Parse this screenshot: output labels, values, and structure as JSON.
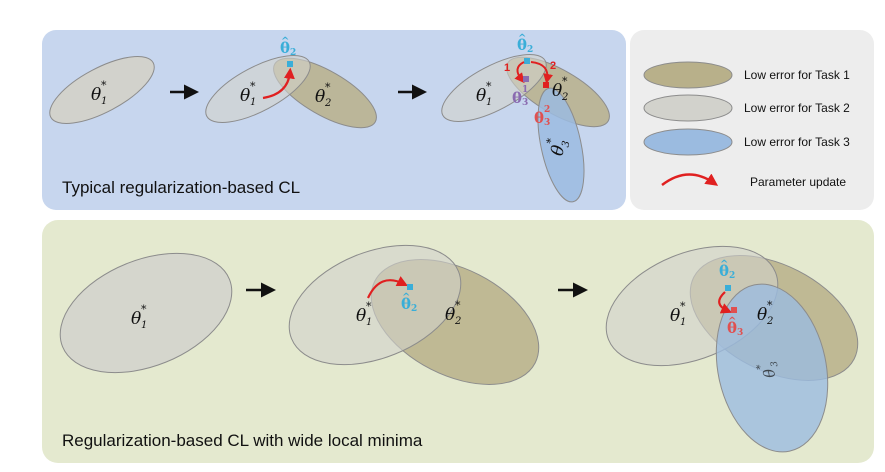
{
  "panels": {
    "top": {
      "title": "Typical regularization-based CL"
    },
    "bottom": {
      "title": "Regularization-based CL with wide local minima"
    }
  },
  "legend": {
    "items": [
      {
        "label": "Low error for Task 1",
        "color": "#b8b08a"
      },
      {
        "label": "Low error for Task 2",
        "color": "#d2d2cc"
      },
      {
        "label": "Low error for Task 3",
        "color": "#9bbbe0"
      },
      {
        "label": "Parameter update",
        "color": "#e02020"
      }
    ]
  },
  "labels": {
    "theta": "θ",
    "star": "*",
    "sub1": "1",
    "sub2": "2",
    "sub3": "3",
    "sup1": "1",
    "sup2": "2",
    "step1": "1",
    "step2": "2"
  },
  "colors": {
    "top_bg": "#c7d6ee",
    "bottom_bg": "#e4e9cf",
    "legend_bg": "#ededed",
    "cyan": "#3aaed8",
    "purple": "#8a6bb0",
    "red": "#e02020"
  }
}
